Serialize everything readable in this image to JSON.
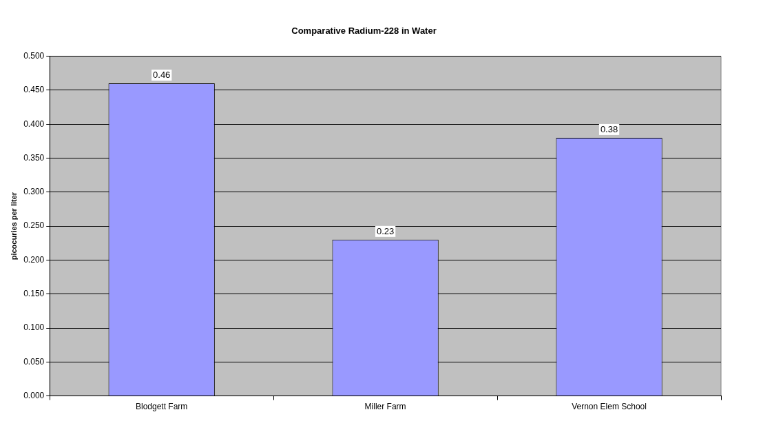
{
  "chart_data": {
    "type": "bar",
    "title": "Comparative Radium-228 in Water",
    "ylabel": "picocuries per liter",
    "categories": [
      "Blodgett Farm",
      "Miller Farm",
      "Vernon Elem School"
    ],
    "values": [
      0.46,
      0.23,
      0.38
    ],
    "color": "#9999ff",
    "data_labels": true,
    "ylim": [
      0,
      0.5
    ],
    "yticks": [
      {
        "value": 0,
        "label": "0.000"
      },
      {
        "value": 0.05,
        "label": "0.050"
      },
      {
        "value": 0.1,
        "label": "0.100"
      },
      {
        "value": 0.15,
        "label": "0.150"
      },
      {
        "value": 0.2,
        "label": "0.200"
      },
      {
        "value": 0.25,
        "label": "0.250"
      },
      {
        "value": 0.3,
        "label": "0.300"
      },
      {
        "value": 0.35,
        "label": "0.350"
      },
      {
        "value": 0.4,
        "label": "0.400"
      },
      {
        "value": 0.45,
        "label": "0.450"
      },
      {
        "value": 0.5,
        "label": "0.500"
      }
    ],
    "grid": "y",
    "legend": false
  }
}
